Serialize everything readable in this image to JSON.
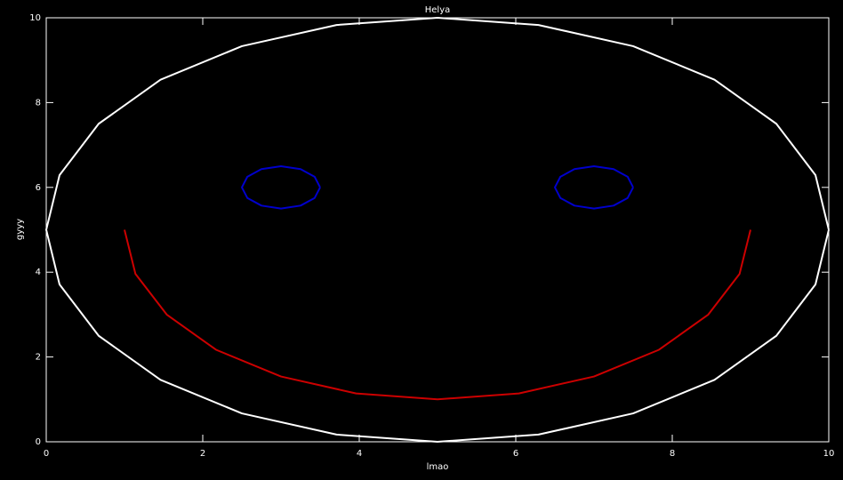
{
  "chart_data": {
    "type": "line",
    "title": "Helya",
    "xlabel": "lmao",
    "ylabel": "gyyy",
    "xlim": [
      0,
      10
    ],
    "ylim": [
      0,
      10
    ],
    "xticks": [
      0,
      2,
      4,
      6,
      8,
      10
    ],
    "yticks": [
      0,
      2,
      4,
      6,
      8,
      10
    ],
    "series": [
      {
        "color": "#ffffff",
        "x": [
          10,
          9.83,
          9.33,
          8.54,
          7.5,
          6.29,
          5,
          3.71,
          2.5,
          1.46,
          0.67,
          0.17,
          0,
          0.17,
          0.67,
          1.46,
          2.5,
          3.71,
          5,
          6.29,
          7.5,
          8.54,
          9.33,
          9.83,
          10
        ],
        "values": [
          5,
          6.29,
          7.5,
          8.54,
          9.33,
          9.83,
          10,
          9.83,
          9.33,
          8.54,
          7.5,
          6.29,
          5,
          3.71,
          2.5,
          1.46,
          0.67,
          0.17,
          0,
          0.17,
          0.67,
          1.46,
          2.5,
          3.71,
          5
        ]
      },
      {
        "color": "#0000cc",
        "x": [
          3.5,
          3.43,
          3.25,
          3,
          2.75,
          2.57,
          2.5,
          2.57,
          2.75,
          3,
          3.25,
          3.43,
          3.5
        ],
        "values": [
          6,
          6.25,
          6.43,
          6.5,
          6.43,
          6.25,
          6,
          5.75,
          5.57,
          5.5,
          5.57,
          5.75,
          6
        ]
      },
      {
        "color": "#0000cc",
        "x": [
          7.5,
          7.43,
          7.25,
          7,
          6.75,
          6.57,
          6.5,
          6.57,
          6.75,
          7,
          7.25,
          7.43,
          7.5
        ],
        "values": [
          6,
          6.25,
          6.43,
          6.5,
          6.43,
          6.25,
          6,
          5.75,
          5.57,
          5.5,
          5.57,
          5.75,
          6
        ]
      },
      {
        "color": "#cc0000",
        "x": [
          1,
          1.14,
          1.54,
          2.17,
          3,
          3.96,
          5,
          6.04,
          7,
          7.83,
          8.46,
          8.86,
          9
        ],
        "values": [
          5,
          3.96,
          3,
          2.17,
          1.54,
          1.14,
          1,
          1.14,
          1.54,
          2.17,
          3,
          3.96,
          5
        ]
      }
    ]
  }
}
